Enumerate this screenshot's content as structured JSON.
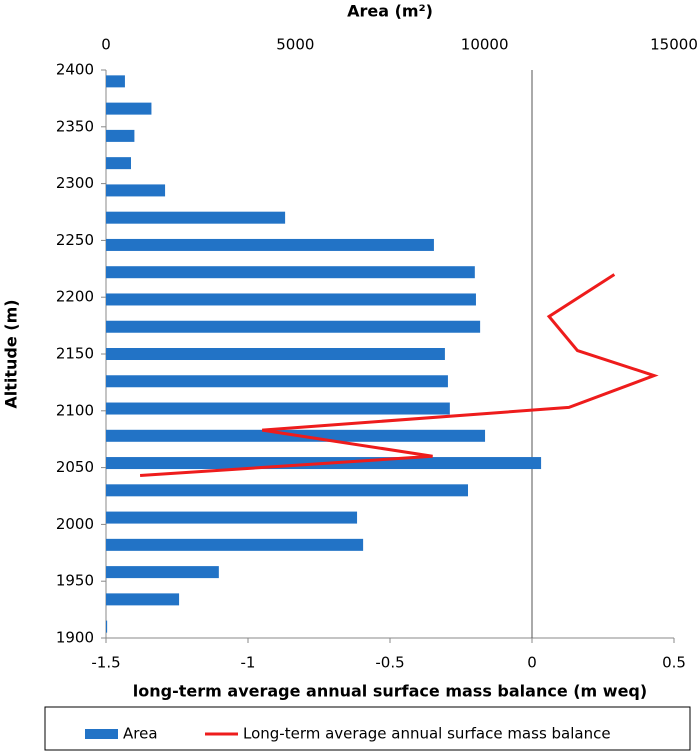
{
  "chart_data": {
    "type": "bar-line",
    "x2_label": "Area (m²)",
    "x_label": "long-term average annual surface mass balance (m weq)",
    "y_label": "Altitude (m)",
    "ylim": [
      1900,
      2400
    ],
    "yticks": [
      1900,
      1950,
      2000,
      2050,
      2100,
      2150,
      2200,
      2250,
      2300,
      2350,
      2400
    ],
    "x2lim": [
      0,
      15000
    ],
    "x2ticks": [
      0,
      5000,
      10000,
      15000
    ],
    "xlim": [
      -1.5,
      0.5
    ],
    "xticks": [
      -1.5,
      -1,
      -0.5,
      0,
      0.5
    ],
    "zero_line": true,
    "legend": "bottom",
    "series": [
      {
        "name": "Area",
        "type": "bar",
        "axis": "x2",
        "color": "#2273c6",
        "y": [
          2390,
          2366,
          2342,
          2318,
          2294,
          2270,
          2246,
          2222,
          2198,
          2174,
          2150,
          2126,
          2102,
          2078,
          2054,
          2030,
          2006,
          1982,
          1958,
          1934,
          1910
        ],
        "values": [
          500,
          1200,
          750,
          660,
          1560,
          4730,
          8660,
          9740,
          9770,
          9880,
          8950,
          9030,
          9080,
          10010,
          11490,
          9560,
          6630,
          6790,
          2980,
          1930,
          30
        ]
      },
      {
        "name": "Long-term average annual surface mass balance",
        "type": "line",
        "axis": "x",
        "color": "#ee1c1c",
        "y": [
          2220,
          2183,
          2153,
          2131,
          2103,
          2083,
          2060,
          2043
        ],
        "values": [
          0.29,
          0.06,
          0.16,
          0.43,
          0.13,
          -0.95,
          -0.35,
          -1.38
        ]
      }
    ]
  }
}
